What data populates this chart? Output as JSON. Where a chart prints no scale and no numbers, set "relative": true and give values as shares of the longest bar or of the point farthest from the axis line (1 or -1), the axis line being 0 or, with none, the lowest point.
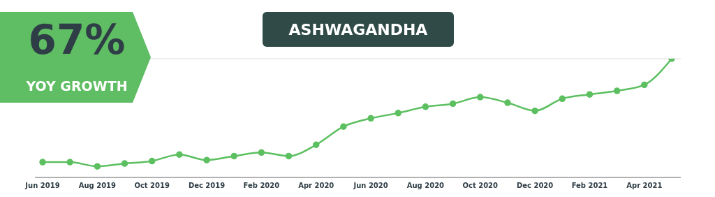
{
  "chart_data": {
    "type": "line",
    "title": "ASHWAGANDHA",
    "annotations": [
      "67%",
      "YOY GROWTH"
    ],
    "relative": true,
    "grid": "y",
    "marker": "circle",
    "legend": false,
    "categories": [
      "Jun 2019",
      null,
      "Aug 2019",
      null,
      "Oct 2019",
      null,
      "Dec 2019",
      null,
      "Feb 2020",
      null,
      "Apr 2020",
      null,
      "Jun 2020",
      null,
      "Aug 2020",
      null,
      "Oct 2020",
      null,
      "Dec 2020",
      null,
      "Feb 2021",
      null,
      "Apr 2021",
      null
    ],
    "series": [
      {
        "color": "#5cbf60",
        "values": [
          0.129,
          0.129,
          0.093,
          0.117,
          0.138,
          0.193,
          0.146,
          0.18,
          0.21,
          0.18,
          0.275,
          0.428,
          0.498,
          0.542,
          0.595,
          0.621,
          0.676,
          0.629,
          0.561,
          0.663,
          0.699,
          0.729,
          0.78,
          1
        ]
      }
    ]
  }
}
